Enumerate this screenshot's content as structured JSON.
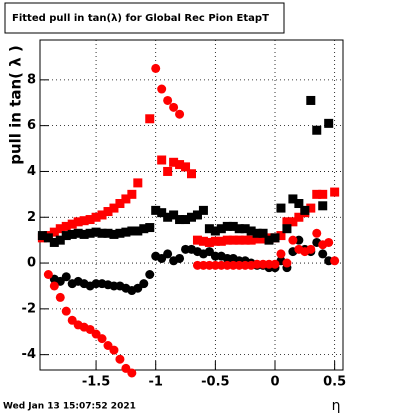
{
  "chart_data": {
    "type": "scatter",
    "title": "Fitted pull in tan(λ) for Global Rec Pion EtapT",
    "x_label": "η",
    "y_label": "pull in tan( λ )",
    "timestamp": "Wed Jan 13 15:07:52 2021",
    "x": [
      -1.95,
      -1.9,
      -1.85,
      -1.8,
      -1.75,
      -1.7,
      -1.65,
      -1.6,
      -1.55,
      -1.5,
      -1.45,
      -1.4,
      -1.35,
      -1.3,
      -1.25,
      -1.2,
      -1.15,
      -1.1,
      -1.05,
      -1.0,
      -0.95,
      -0.9,
      -0.85,
      -0.8,
      -0.75,
      -0.7,
      -0.65,
      -0.6,
      -0.55,
      -0.5,
      -0.45,
      -0.4,
      -0.35,
      -0.3,
      -0.25,
      -0.2,
      -0.15,
      -0.1,
      -0.05,
      0,
      0.05,
      0.1,
      0.15,
      0.2,
      0.25,
      0.3,
      0.35,
      0.4,
      0.45,
      0.5
    ],
    "series": [
      {
        "color": "#ff0000",
        "marker": "square",
        "values": [
          1.1,
          1.2,
          1.35,
          1.5,
          1.6,
          1.7,
          1.8,
          1.85,
          1.9,
          2.0,
          2.1,
          2.25,
          2.4,
          2.6,
          2.8,
          3.0,
          3.5,
          null,
          6.3,
          null,
          4.5,
          4.0,
          4.4,
          4.3,
          4.2,
          3.9,
          1.0,
          0.95,
          0.9,
          0.95,
          0.95,
          1.0,
          1.0,
          1.0,
          1.0,
          1.0,
          1.05,
          1.05,
          1.1,
          1.1,
          1.2,
          1.8,
          1.8,
          2.0,
          2.2,
          2.4,
          3.0,
          3.0,
          null,
          3.1
        ]
      },
      {
        "color": "#000000",
        "marker": "square",
        "values": [
          1.2,
          1.1,
          0.9,
          1.0,
          1.2,
          1.25,
          1.3,
          1.25,
          1.3,
          1.35,
          1.3,
          1.3,
          1.25,
          1.3,
          1.35,
          1.4,
          1.4,
          1.5,
          1.55,
          2.3,
          2.2,
          2.0,
          2.1,
          1.9,
          1.9,
          2.0,
          2.1,
          2.3,
          1.5,
          1.4,
          1.5,
          1.6,
          1.6,
          1.5,
          1.5,
          1.4,
          1.3,
          1.3,
          1.0,
          1.1,
          2.4,
          1.5,
          2.8,
          2.6,
          2.3,
          7.1,
          5.8,
          2.5,
          6.1,
          null
        ]
      },
      {
        "color": "#000000",
        "marker": "circle",
        "values": [
          null,
          null,
          -0.7,
          -0.8,
          -0.6,
          -0.9,
          -0.8,
          -0.9,
          -1.0,
          -0.9,
          -0.9,
          -0.95,
          -1.0,
          -1.0,
          -1.1,
          -1.2,
          -1.1,
          -0.9,
          -0.5,
          0.3,
          0.2,
          0.4,
          0.1,
          0.2,
          0.6,
          0.6,
          0.5,
          0.4,
          0.5,
          0.3,
          0.3,
          0.2,
          0.2,
          0.1,
          0.1,
          0,
          -0.1,
          -0.1,
          -0.2,
          -0.2,
          0.1,
          -0.2,
          0.5,
          1.0,
          0.6,
          0.5,
          0.9,
          0.4,
          0.1,
          null
        ]
      },
      {
        "color": "#ff0000",
        "marker": "circle",
        "values": [
          null,
          -0.5,
          -1.0,
          -1.5,
          -2.1,
          -2.5,
          -2.7,
          -2.8,
          -2.9,
          -3.1,
          -3.3,
          -3.6,
          -3.8,
          -4.2,
          -4.6,
          -4.8,
          null,
          null,
          null,
          8.5,
          7.6,
          7.1,
          6.8,
          6.5,
          null,
          null,
          -0.1,
          -0.1,
          -0.1,
          -0.1,
          -0.1,
          -0.1,
          -0.1,
          -0.1,
          -0.1,
          -0.1,
          -0.05,
          -0.05,
          -0.05,
          -0.05,
          0.4,
          0.0,
          1.0,
          0.6,
          0.5,
          0.6,
          1.3,
          0.8,
          0.9,
          0.1
        ]
      }
    ],
    "xlim": [
      -1.97,
      0.57
    ],
    "ylim": [
      -4.67,
      9.74
    ],
    "xticks": [
      -1.5,
      -1,
      -0.5,
      0,
      0.5
    ],
    "yticks": [
      -4,
      -2,
      0,
      2,
      4,
      6,
      8
    ],
    "grid": true
  }
}
